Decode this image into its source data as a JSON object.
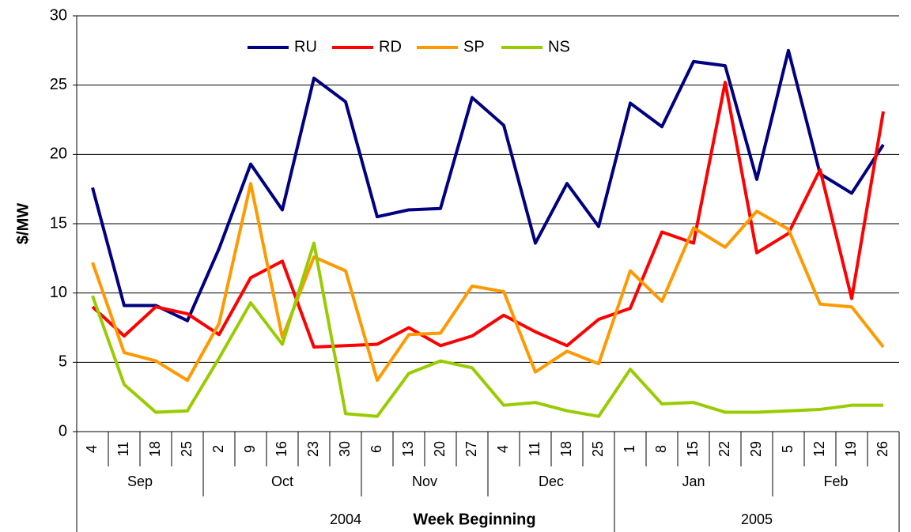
{
  "chart_data": {
    "type": "line",
    "y_label": "$/MW",
    "x_label": "Week Beginning",
    "category_groups": [
      {
        "label": "2004",
        "months": [
          {
            "label": "Sep",
            "days": [
              "4",
              "11",
              "18",
              "25"
            ]
          },
          {
            "label": "Oct",
            "days": [
              "2",
              "9",
              "16",
              "23",
              "30"
            ]
          },
          {
            "label": "Nov",
            "days": [
              "6",
              "13",
              "20",
              "27"
            ]
          },
          {
            "label": "Dec",
            "days": [
              "4",
              "11",
              "18",
              "25"
            ]
          }
        ]
      },
      {
        "label": "2005",
        "months": [
          {
            "label": "Jan",
            "days": [
              "1",
              "8",
              "15",
              "22",
              "29"
            ]
          },
          {
            "label": "Feb",
            "days": [
              "5",
              "12",
              "19",
              "26"
            ]
          }
        ]
      }
    ],
    "series": [
      {
        "name": "RU",
        "color": "#000080",
        "values": [
          17.6,
          9.1,
          9.1,
          8.0,
          13.2,
          19.3,
          16.0,
          25.5,
          23.8,
          15.5,
          16.0,
          16.1,
          24.1,
          22.1,
          13.6,
          17.9,
          14.8,
          23.7,
          22.0,
          26.7,
          26.4,
          18.2,
          27.5,
          18.6,
          17.2,
          20.7
        ]
      },
      {
        "name": "RD",
        "color": "#ff0000",
        "values": [
          9.0,
          6.9,
          9.0,
          8.5,
          7.0,
          11.1,
          12.3,
          6.1,
          6.2,
          6.3,
          7.5,
          6.2,
          6.9,
          8.4,
          7.2,
          6.2,
          8.1,
          8.9,
          14.4,
          13.6,
          25.2,
          12.9,
          14.3,
          18.9,
          9.6,
          23.1
        ]
      },
      {
        "name": "SP",
        "color": "#ff9900",
        "values": [
          12.2,
          5.7,
          5.1,
          3.7,
          7.8,
          17.9,
          6.8,
          12.6,
          11.6,
          3.7,
          7.0,
          7.1,
          10.5,
          10.1,
          4.3,
          5.8,
          4.9,
          11.6,
          9.4,
          14.7,
          13.3,
          15.9,
          14.6,
          9.2,
          9.0,
          6.1
        ]
      },
      {
        "name": "NS",
        "color": "#99cc00",
        "values": [
          9.8,
          3.4,
          1.4,
          1.5,
          5.3,
          9.3,
          6.3,
          13.6,
          1.3,
          1.1,
          4.2,
          5.1,
          4.6,
          1.9,
          2.1,
          1.5,
          1.1,
          4.5,
          2.0,
          2.1,
          1.4,
          1.4,
          1.5,
          1.6,
          1.9,
          1.9
        ]
      }
    ],
    "ylim": [
      0,
      30
    ],
    "yticks": [
      0,
      5,
      10,
      15,
      20,
      25,
      30
    ],
    "grid": true,
    "legend": "top"
  }
}
